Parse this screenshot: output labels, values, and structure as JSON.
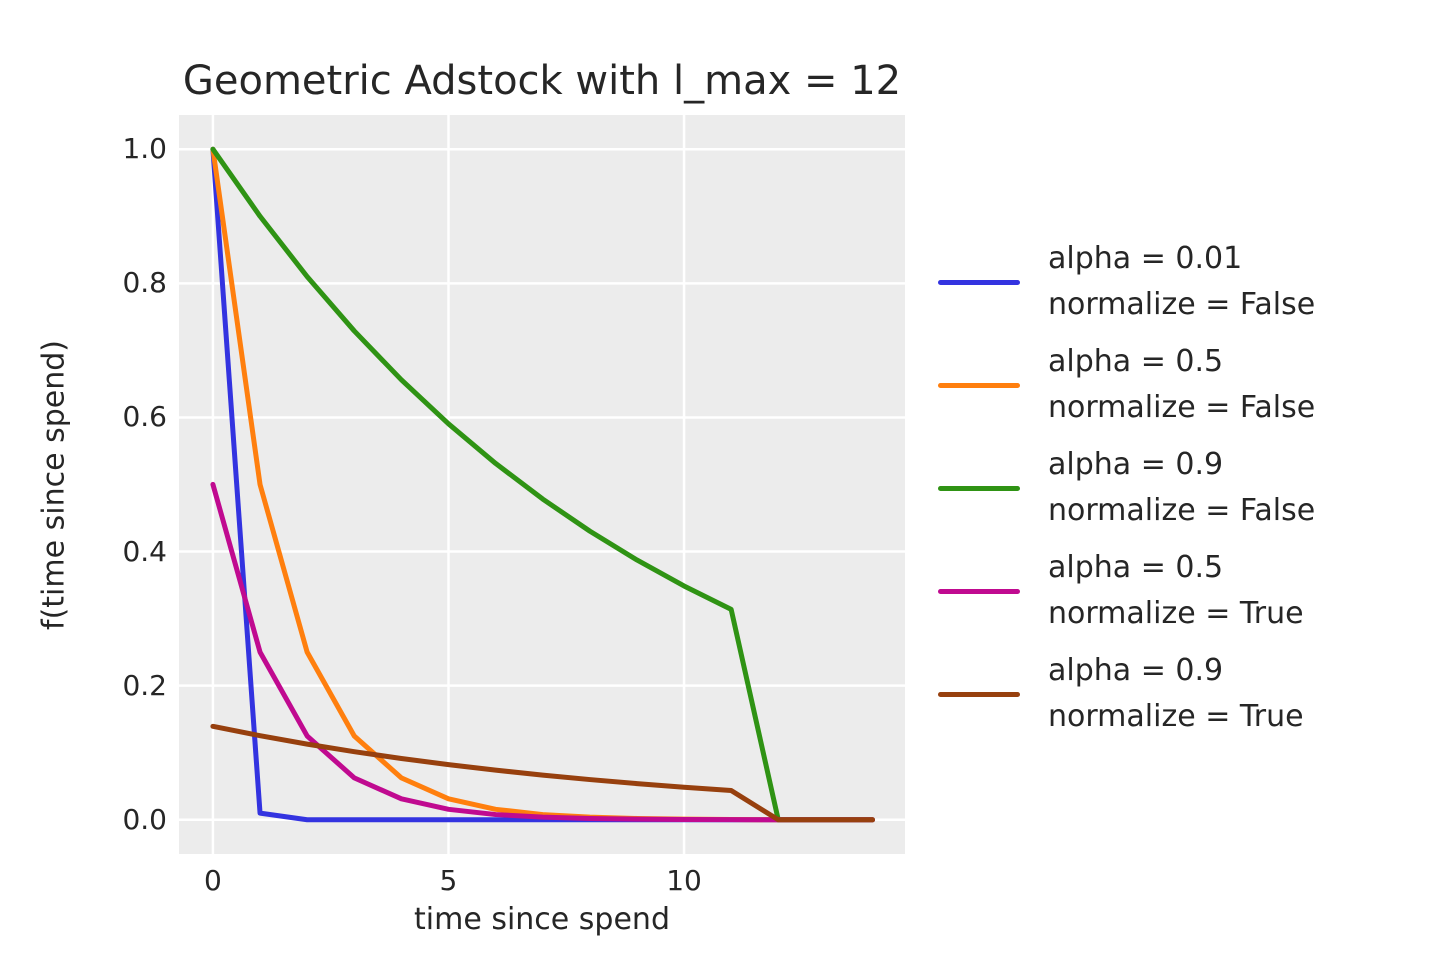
{
  "chart_data": {
    "type": "line",
    "title": "Geometric Adstock with l_max = 12",
    "xlabel": "time since spend",
    "ylabel": "f(time since spend)",
    "grid": true,
    "legend_position": "right of axes, vertically centered",
    "axes_background": "#ECECEC",
    "grid_color": "#FFFFFF",
    "text_color": "#262626",
    "x": [
      0,
      1,
      2,
      3,
      4,
      5,
      6,
      7,
      8,
      9,
      10,
      11,
      12,
      13,
      14
    ],
    "xlim": [
      -0.72,
      14.69
    ],
    "ylim": [
      -0.051,
      1.051
    ],
    "xticks": [
      {
        "value": 0,
        "label": "0"
      },
      {
        "value": 5,
        "label": "5"
      },
      {
        "value": 10,
        "label": "10"
      }
    ],
    "yticks": [
      {
        "value": 0.0,
        "label": "0.0"
      },
      {
        "value": 0.2,
        "label": "0.2"
      },
      {
        "value": 0.4,
        "label": "0.4"
      },
      {
        "value": 0.6,
        "label": "0.6"
      },
      {
        "value": 0.8,
        "label": "0.8"
      },
      {
        "value": 1.0,
        "label": "1.0"
      }
    ],
    "series": [
      {
        "label_line1": "alpha = 0.01",
        "label_line2": "normalize = False",
        "color": "#3333E0",
        "values": [
          1.0,
          0.01,
          0.0001,
          0.0,
          0.0,
          0.0,
          0.0,
          0.0,
          0.0,
          0.0,
          0.0,
          0.0,
          0.0,
          0.0,
          0.0
        ]
      },
      {
        "label_line1": "alpha = 0.5",
        "label_line2": "normalize = False",
        "color": "#FF7F0E",
        "values": [
          1.0,
          0.5,
          0.25,
          0.125,
          0.0625,
          0.03125,
          0.01563,
          0.00781,
          0.00391,
          0.00195,
          0.00098,
          0.00049,
          0.0,
          0.0,
          0.0
        ]
      },
      {
        "label_line1": "alpha = 0.9",
        "label_line2": "normalize = False",
        "color": "#2F9314",
        "values": [
          1.0,
          0.9,
          0.81,
          0.729,
          0.6561,
          0.59049,
          0.53144,
          0.4783,
          0.43047,
          0.38742,
          0.34868,
          0.31381,
          0.0,
          0.0,
          0.0
        ]
      },
      {
        "label_line1": "alpha = 0.5",
        "label_line2": "normalize = True",
        "color": "#C00A90",
        "values": [
          0.50012,
          0.25006,
          0.12503,
          0.06252,
          0.03126,
          0.01563,
          0.00781,
          0.00391,
          0.00195,
          0.00098,
          0.00049,
          0.00024,
          0.0,
          0.0,
          0.0
        ]
      },
      {
        "label_line1": "alpha = 0.9",
        "label_line2": "normalize = True",
        "color": "#97400E",
        "values": [
          0.13936,
          0.12542,
          0.11288,
          0.10159,
          0.09143,
          0.08229,
          0.07406,
          0.06665,
          0.05999,
          0.05399,
          0.04859,
          0.04373,
          0.0,
          0.0,
          0.0
        ]
      }
    ]
  }
}
